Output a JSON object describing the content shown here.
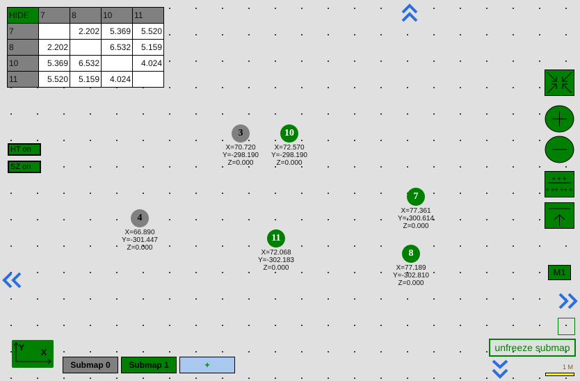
{
  "distance_table": {
    "hide_label": "HIDE",
    "headers": [
      "7",
      "8",
      "10",
      "11"
    ],
    "rows": [
      {
        "label": "7",
        "values": [
          "",
          "2.202",
          "5.369",
          "5.520"
        ]
      },
      {
        "label": "8",
        "values": [
          "2.202",
          "",
          "6.532",
          "5.159"
        ]
      },
      {
        "label": "10",
        "values": [
          "5.369",
          "6.532",
          "",
          "4.024"
        ]
      },
      {
        "label": "11",
        "values": [
          "5.520",
          "5.159",
          "4.024",
          ""
        ]
      }
    ]
  },
  "toggles": {
    "ht": "HT on",
    "sz": "SZ on"
  },
  "nodes": [
    {
      "id": "3",
      "state": "gray",
      "x": "X=70.720",
      "y": "Y=-298.190",
      "z": "Z=0.000"
    },
    {
      "id": "10",
      "state": "green",
      "x": "X=72.570",
      "y": "Y=-298.190",
      "z": "Z=0.000"
    },
    {
      "id": "4",
      "state": "gray",
      "x": "X=66.890",
      "y": "Y=-301.447",
      "z": "Z=0.000"
    },
    {
      "id": "11",
      "state": "green",
      "x": "X=72.068",
      "y": "Y=-302.183",
      "z": "Z=0.000"
    },
    {
      "id": "7",
      "state": "green",
      "x": "X=77.361",
      "y": "Y=-300.614",
      "z": "Z=0.000"
    },
    {
      "id": "8",
      "state": "green",
      "x": "X=77.189",
      "y": "Y=-302.810",
      "z": "Z=0.000"
    }
  ],
  "axis_widget": {
    "y": "Y",
    "x": "X"
  },
  "submaps": [
    "Submap 0",
    "Submap 1"
  ],
  "add_submap": "+",
  "m1_label": "M1",
  "unfreeze": "unfreeze submap",
  "scale_label": "1 M",
  "colors": {
    "green": "#008000",
    "gray": "#808080",
    "add": "#a8c8f0",
    "scale": "#ffff00"
  }
}
